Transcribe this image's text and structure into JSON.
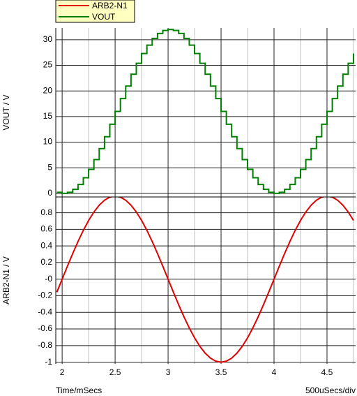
{
  "chart_data": [
    {
      "type": "line",
      "y_label": "VOUT / V",
      "step": true,
      "x": [
        1.95,
        2.0,
        2.05,
        2.1,
        2.15,
        2.2,
        2.25,
        2.3,
        2.35,
        2.4,
        2.45,
        2.5,
        2.55,
        2.6,
        2.65,
        2.7,
        2.75,
        2.8,
        2.85,
        2.9,
        2.95,
        3.0,
        3.05,
        3.1,
        3.15,
        3.2,
        3.25,
        3.3,
        3.35,
        3.4,
        3.45,
        3.5,
        3.55,
        3.6,
        3.65,
        3.7,
        3.75,
        3.8,
        3.85,
        3.9,
        3.95,
        4.0,
        4.05,
        4.1,
        4.15,
        4.2,
        4.25,
        4.3,
        4.35,
        4.4,
        4.45,
        4.5,
        4.55,
        4.6,
        4.65,
        4.7,
        4.75
      ],
      "series": [
        {
          "name": "VOUT",
          "color": "#008000",
          "values": [
            0.197,
            0,
            0.197,
            0.782,
            1.744,
            3.056,
            4.686,
            6.595,
            8.736,
            11.056,
            13.498,
            16,
            18.502,
            20.944,
            23.264,
            25.405,
            27.314,
            28.944,
            30.256,
            31.218,
            31.803,
            32,
            31.803,
            31.218,
            30.256,
            28.944,
            27.314,
            25.405,
            23.264,
            20.944,
            18.502,
            16,
            13.498,
            11.056,
            8.736,
            6.595,
            4.686,
            3.056,
            1.744,
            0.782,
            0.197,
            0,
            0.197,
            0.782,
            1.744,
            3.056,
            4.686,
            6.595,
            8.736,
            11.056,
            13.498,
            16,
            18.502,
            20.944,
            23.264,
            25.405,
            27.314
          ]
        }
      ],
      "xlim": [
        1.94,
        4.77
      ],
      "xticks": [
        2,
        2.5,
        3,
        3.5,
        4,
        4.5
      ],
      "xminorticks": [
        2.25,
        2.75,
        3.25,
        3.75,
        4.25,
        4.75
      ],
      "ylim": [
        -0.7,
        32.3
      ],
      "yticks": [
        0,
        5,
        10,
        15,
        20,
        25,
        30
      ],
      "grid": true
    },
    {
      "type": "line",
      "y_label": "ARB2-N1 / V",
      "x_label": "Time/mSecs",
      "x_annotation": "500uSecs/div",
      "step": false,
      "x": [
        1.95,
        2.0,
        2.05,
        2.1,
        2.15,
        2.2,
        2.25,
        2.3,
        2.35,
        2.4,
        2.45,
        2.5,
        2.55,
        2.6,
        2.65,
        2.7,
        2.75,
        2.8,
        2.85,
        2.9,
        2.95,
        3.0,
        3.05,
        3.1,
        3.15,
        3.2,
        3.25,
        3.3,
        3.35,
        3.4,
        3.45,
        3.5,
        3.55,
        3.6,
        3.65,
        3.7,
        3.75,
        3.8,
        3.85,
        3.9,
        3.95,
        4.0,
        4.05,
        4.1,
        4.15,
        4.2,
        4.25,
        4.3,
        4.35,
        4.4,
        4.45,
        4.5,
        4.55,
        4.6,
        4.65,
        4.7,
        4.75
      ],
      "series": [
        {
          "name": "ARB2-N1",
          "color": "#e00000",
          "values": [
            -0.1564,
            0,
            0.1564,
            0.309,
            0.454,
            0.5878,
            0.7071,
            0.809,
            0.891,
            0.9511,
            0.9877,
            1,
            0.9877,
            0.9511,
            0.891,
            0.809,
            0.7071,
            0.5878,
            0.454,
            0.309,
            0.1564,
            0,
            -0.1564,
            -0.309,
            -0.454,
            -0.5878,
            -0.7071,
            -0.809,
            -0.891,
            -0.9511,
            -0.9877,
            -1,
            -0.9877,
            -0.9511,
            -0.891,
            -0.809,
            -0.7071,
            -0.5878,
            -0.454,
            -0.309,
            -0.1564,
            0,
            0.1564,
            0.309,
            0.454,
            0.5878,
            0.7071,
            0.809,
            0.891,
            0.9511,
            0.9877,
            1,
            0.9877,
            0.9511,
            0.891,
            0.809,
            0.7071
          ]
        }
      ],
      "xlim": [
        1.94,
        4.77
      ],
      "xticks": [
        2,
        2.5,
        3,
        3.5,
        4,
        4.5
      ],
      "xminorticks": [
        2.25,
        2.75,
        3.25,
        3.75,
        4.25,
        4.75
      ],
      "ylim": [
        -1.02,
        0.99
      ],
      "yticks": [
        -1,
        -0.8,
        -0.6,
        -0.4,
        -0.2,
        {
          "value": 0,
          "label": "-0"
        },
        0.2,
        0.4,
        0.6,
        0.8
      ],
      "grid": true
    }
  ]
}
